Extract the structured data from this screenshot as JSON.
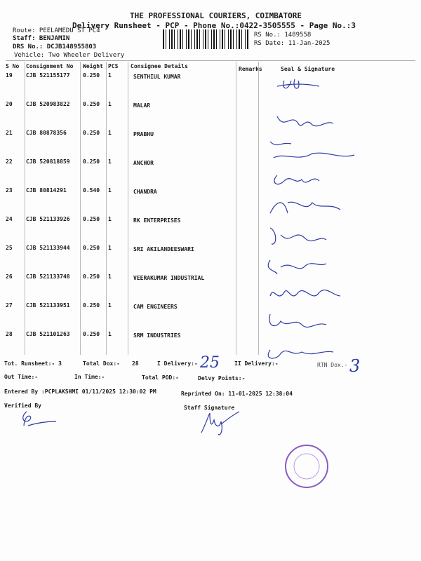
{
  "header": {
    "company": "THE PROFESSIONAL COURIERS, COIMBATORE",
    "subtitle": "Delivery Runsheet - PCP - Phone No.:0422-3505555 - Page No.:3",
    "route": "Route: PEELAMEDU ST PC4",
    "staff": "Staff: BENJAMIN",
    "drs": "DRS No.: DCJB148955803",
    "vehicle": "Vehicle: Two Wheeler Delivery",
    "rs_no": "RS No.: 1489558",
    "rs_date": "RS Date: 11-Jan-2025"
  },
  "table": {
    "columns": [
      "S No",
      "Consignment No",
      "Weight",
      "PCS",
      "Consignee Details",
      "Remarks",
      "Seal & Signature"
    ],
    "rows": [
      {
        "sno": "19",
        "cn": "CJB 521155177",
        "wt": "0.250",
        "pcs": "1",
        "name": "SENTHIUL KUMAR"
      },
      {
        "sno": "20",
        "cn": "CJB 520983822",
        "wt": "0.250",
        "pcs": "1",
        "name": "MALAR"
      },
      {
        "sno": "21",
        "cn": "CJB 80878356",
        "wt": "0.250",
        "pcs": "1",
        "name": "PRABHU"
      },
      {
        "sno": "22",
        "cn": "CJB 520818859",
        "wt": "0.250",
        "pcs": "1",
        "name": "ANCHOR"
      },
      {
        "sno": "23",
        "cn": "CJB 80814291",
        "wt": "0.540",
        "pcs": "1",
        "name": "CHANDRA"
      },
      {
        "sno": "24",
        "cn": "CJB 521133926",
        "wt": "0.250",
        "pcs": "1",
        "name": "RK ENTERPRISES"
      },
      {
        "sno": "25",
        "cn": "CJB 521133944",
        "wt": "0.250",
        "pcs": "1",
        "name": "SRI AKILANDEESWARI"
      },
      {
        "sno": "26",
        "cn": "CJB 521133748",
        "wt": "0.250",
        "pcs": "1",
        "name": "VEERAKUMAR INDUSTRIAL"
      },
      {
        "sno": "27",
        "cn": "CJB 521133951",
        "wt": "0.250",
        "pcs": "1",
        "name": "CAM ENGINEERS"
      },
      {
        "sno": "28",
        "cn": "CJB 521101263",
        "wt": "0.250",
        "pcs": "1",
        "name": "SRM INDUSTRIES"
      }
    ]
  },
  "footer": {
    "tot_runsheet": "Tot. Runsheet:- 3",
    "total_dox": "Total Dox:-",
    "total_dox_val": "28",
    "i_delivery": "I Delivery:-",
    "i_delivery_hand": "25",
    "ii_delivery": "II Delivery:-",
    "rtn_dox": "RTN Dox.-",
    "rtn_dox_hand": "3",
    "out_time": "Out Time:-",
    "in_time": "In Time:-",
    "total_pod": "Total POD:-",
    "delvy_points": "Delvy Points:-",
    "entered_by": "Entered By :PCPLAKSHMI 01/11/2025 12:30:02 PM",
    "reprinted": "Reprinted On: 11-01-2025 12:38:04",
    "verified_by": "Verified By",
    "staff_signature": "Staff Signature"
  },
  "colors": {
    "ink": "#2b3ba6",
    "stamp": "#8a5bc4"
  }
}
